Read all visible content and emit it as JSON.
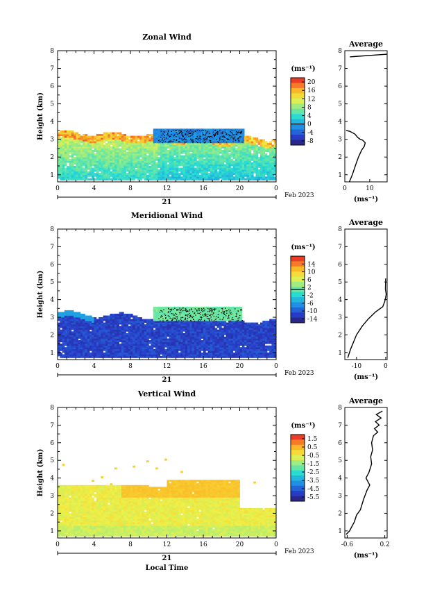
{
  "chart_data": [
    {
      "type": "heatmap",
      "title": "Zonal Wind",
      "ylabel": "Height (km)",
      "y_ticks": [
        "1",
        "2",
        "3",
        "4",
        "5",
        "6",
        "7",
        "8"
      ],
      "ylim": [
        0.6,
        8.0
      ],
      "x_ticks": [
        "0",
        "4",
        "8",
        "12",
        "16",
        "20",
        "0"
      ],
      "xlim": [
        0,
        24
      ],
      "date_day": "21",
      "date_label": "Feb 2023",
      "colorbar": {
        "unit": "(ms⁻¹)",
        "ticks": [
          "20",
          "16",
          "12",
          "8",
          "4",
          "0",
          "-4",
          "-8"
        ],
        "range": [
          -10,
          22
        ]
      },
      "profile": {
        "title": "Average",
        "xlabel": "(ms⁻¹)",
        "x_ticks": [
          "0",
          "10"
        ],
        "xlim": [
          0,
          17
        ],
        "points": [
          [
            1.8,
            0.6
          ],
          [
            3.0,
            1.0
          ],
          [
            4.2,
            1.5
          ],
          [
            5.5,
            2.0
          ],
          [
            6.8,
            2.4
          ],
          [
            7.8,
            2.6
          ],
          [
            8.2,
            2.8
          ],
          [
            7.2,
            2.95
          ],
          [
            6.2,
            3.0
          ],
          [
            5.2,
            3.1
          ],
          [
            4.0,
            3.3
          ],
          [
            2.0,
            3.45
          ],
          [
            0.5,
            3.5
          ]
        ],
        "top_points": [
          [
            2.0,
            7.65
          ],
          [
            17.0,
            7.8
          ]
        ]
      }
    },
    {
      "type": "heatmap",
      "title": "Meridional Wind",
      "ylabel": "Height (km)",
      "y_ticks": [
        "1",
        "2",
        "3",
        "4",
        "5",
        "6",
        "7",
        "8"
      ],
      "ylim": [
        0.6,
        8.0
      ],
      "x_ticks": [
        "0",
        "4",
        "8",
        "12",
        "16",
        "20",
        "0"
      ],
      "xlim": [
        0,
        24
      ],
      "date_day": "21",
      "date_label": "Feb 2023",
      "colorbar": {
        "unit": "(ms⁻¹)",
        "ticks": [
          "14",
          "10",
          "6",
          "2",
          "-2",
          "-6",
          "-10",
          "-14"
        ],
        "range": [
          -16,
          18
        ]
      },
      "profile": {
        "title": "Average",
        "xlabel": "(ms⁻¹)",
        "x_ticks": [
          "-10",
          "0"
        ],
        "xlim": [
          -14,
          0.5
        ],
        "points": [
          [
            -13.0,
            0.7
          ],
          [
            -12.0,
            1.2
          ],
          [
            -11.0,
            1.6
          ],
          [
            -10.0,
            2.0
          ],
          [
            -8.0,
            2.5
          ],
          [
            -6.0,
            2.9
          ],
          [
            -3.5,
            3.3
          ],
          [
            -1.0,
            3.6
          ],
          [
            -0.3,
            3.9
          ],
          [
            0.2,
            4.3
          ],
          [
            -0.1,
            4.6
          ],
          [
            0.0,
            5.2
          ]
        ]
      }
    },
    {
      "type": "heatmap",
      "title": "Vertical Wind",
      "ylabel": "Height (km)",
      "xlabel": "Local Time",
      "y_ticks": [
        "1",
        "2",
        "3",
        "4",
        "5",
        "6",
        "7",
        "8"
      ],
      "ylim": [
        0.6,
        8.0
      ],
      "x_ticks": [
        "0",
        "4",
        "8",
        "12",
        "16",
        "20",
        "0"
      ],
      "xlim": [
        0,
        24
      ],
      "date_day": "21",
      "date_label": "Feb 2023",
      "colorbar": {
        "unit": "(ms⁻¹)",
        "ticks": [
          "1.5",
          "0.5",
          "-0.5",
          "-1.5",
          "-2.5",
          "-3.5",
          "-4.5",
          "-5.5"
        ],
        "range": [
          -6.0,
          2.0
        ]
      },
      "profile": {
        "title": "Average",
        "xlabel": "(ms⁻¹)",
        "x_ticks": [
          "-0.6",
          "0.2"
        ],
        "xlim": [
          -0.65,
          0.25
        ],
        "points": [
          [
            -0.62,
            0.8
          ],
          [
            -0.55,
            1.0
          ],
          [
            -0.45,
            1.5
          ],
          [
            -0.4,
            1.9
          ],
          [
            -0.32,
            2.2
          ],
          [
            -0.25,
            2.8
          ],
          [
            -0.18,
            3.3
          ],
          [
            -0.12,
            3.6
          ],
          [
            -0.16,
            3.8
          ],
          [
            -0.2,
            4.0
          ],
          [
            -0.14,
            4.3
          ],
          [
            -0.08,
            4.8
          ],
          [
            -0.1,
            5.2
          ],
          [
            -0.06,
            5.6
          ],
          [
            -0.08,
            6.0
          ],
          [
            -0.04,
            6.4
          ],
          [
            0.05,
            6.6
          ],
          [
            -0.02,
            6.8
          ],
          [
            0.08,
            7.0
          ],
          [
            0.0,
            7.2
          ],
          [
            0.12,
            7.4
          ],
          [
            0.02,
            7.6
          ],
          [
            0.15,
            7.8
          ]
        ]
      }
    }
  ]
}
